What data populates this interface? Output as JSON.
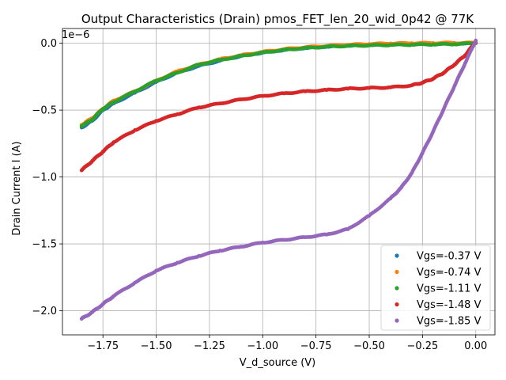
{
  "chart_data": {
    "type": "scatter",
    "title": "Output Characteristics (Drain) pmos_FET_len_20_wid_0p42 @ 77K",
    "xlabel": "V_d_source (V)",
    "ylabel": "Drain Current I (A)",
    "y_offset_label": "1e−6",
    "xlim": [
      -1.94,
      0.09
    ],
    "ylim": [
      -2.18e-06,
      1.1e-07
    ],
    "grid": true,
    "legend_position": "lower-right",
    "x_ticks": [
      -1.75,
      -1.5,
      -1.25,
      -1.0,
      -0.75,
      -0.5,
      -0.25,
      0.0
    ],
    "x_tick_labels": [
      "−1.75",
      "−1.50",
      "−1.25",
      "−1.00",
      "−0.75",
      "−0.50",
      "−0.25",
      "0.00"
    ],
    "y_ticks": [
      0,
      -5e-07,
      -1e-06,
      -1.5e-06,
      -2e-06
    ],
    "y_tick_labels": [
      "0.0",
      "−0.5",
      "−1.0",
      "−1.5",
      "−2.0"
    ],
    "series": [
      {
        "name": "Vgs=-0.37 V",
        "color": "#1f77b4",
        "x": [
          -1.85,
          -1.8,
          -1.75,
          -1.7,
          -1.6,
          -1.5,
          -1.4,
          -1.3,
          -1.2,
          -1.1,
          -1.0,
          -0.9,
          -0.8,
          -0.7,
          -0.6,
          -0.5,
          -0.4,
          -0.3,
          -0.2,
          -0.1,
          0.0
        ],
        "y": [
          -6.3e-07,
          -5.8e-07,
          -5e-07,
          -4.5e-07,
          -3.7e-07,
          -2.9e-07,
          -2.2e-07,
          -1.7e-07,
          -1.3e-07,
          -9.5e-08,
          -7e-08,
          -5e-08,
          -3.5e-08,
          -2.5e-08,
          -1.7e-08,
          -1.2e-08,
          -8e-09,
          -5e-09,
          -3e-09,
          -1e-09,
          0.0
        ]
      },
      {
        "name": "Vgs=-0.74 V",
        "color": "#ff7f0e",
        "x": [
          -1.85,
          -1.8,
          -1.75,
          -1.7,
          -1.6,
          -1.5,
          -1.4,
          -1.3,
          -1.2,
          -1.1,
          -1.0,
          -0.9,
          -0.8,
          -0.7,
          -0.6,
          -0.5,
          -0.4,
          -0.3,
          -0.2,
          -0.1,
          0.0
        ],
        "y": [
          -6.1e-07,
          -5.6e-07,
          -4.9e-07,
          -4.3e-07,
          -3.6e-07,
          -2.8e-07,
          -2.1e-07,
          -1.6e-07,
          -1.2e-07,
          -9e-08,
          -6.5e-08,
          -4.5e-08,
          -3e-08,
          -2e-08,
          -1.2e-08,
          -6e-09,
          -2e-09,
          0.0,
          1e-09,
          2e-09,
          2e-09
        ]
      },
      {
        "name": "Vgs=-1.11 V",
        "color": "#2ca02c",
        "x": [
          -1.85,
          -1.8,
          -1.75,
          -1.7,
          -1.6,
          -1.5,
          -1.4,
          -1.3,
          -1.2,
          -1.1,
          -1.0,
          -0.9,
          -0.8,
          -0.7,
          -0.6,
          -0.5,
          -0.4,
          -0.3,
          -0.2,
          -0.1,
          0.0
        ],
        "y": [
          -6.2e-07,
          -5.7e-07,
          -4.9e-07,
          -4.4e-07,
          -3.6e-07,
          -2.8e-07,
          -2.2e-07,
          -1.6e-07,
          -1.25e-07,
          -9.5e-08,
          -7e-08,
          -5e-08,
          -3.6e-08,
          -2.6e-08,
          -2e-08,
          -1.6e-08,
          -1.3e-08,
          -1.1e-08,
          -9e-09,
          -7e-09,
          0.0
        ]
      },
      {
        "name": "Vgs=-1.48 V",
        "color": "#d62728",
        "x": [
          -1.85,
          -1.8,
          -1.75,
          -1.7,
          -1.6,
          -1.5,
          -1.4,
          -1.3,
          -1.2,
          -1.1,
          -1.0,
          -0.9,
          -0.8,
          -0.7,
          -0.6,
          -0.5,
          -0.4,
          -0.3,
          -0.25,
          -0.2,
          -0.15,
          -0.1,
          -0.05,
          0.0
        ],
        "y": [
          -9.5e-07,
          -8.8e-07,
          -8.1e-07,
          -7.4e-07,
          -6.5e-07,
          -5.8e-07,
          -5.3e-07,
          -4.8e-07,
          -4.5e-07,
          -4.2e-07,
          -3.95e-07,
          -3.75e-07,
          -3.6e-07,
          -3.5e-07,
          -3.4e-07,
          -3.35e-07,
          -3.3e-07,
          -3.15e-07,
          -2.95e-07,
          -2.65e-07,
          -2.2e-07,
          -1.6e-07,
          -9e-08,
          1e-08
        ]
      },
      {
        "name": "Vgs=-1.85 V",
        "color": "#9467bd",
        "x": [
          -1.85,
          -1.8,
          -1.75,
          -1.7,
          -1.6,
          -1.5,
          -1.4,
          -1.3,
          -1.2,
          -1.1,
          -1.0,
          -0.9,
          -0.8,
          -0.7,
          -0.6,
          -0.5,
          -0.4,
          -0.35,
          -0.3,
          -0.25,
          -0.2,
          -0.15,
          -0.1,
          -0.05,
          0.0
        ],
        "y": [
          -2.06e-06,
          -2.01e-06,
          -1.95e-06,
          -1.89e-06,
          -1.79e-06,
          -1.7e-06,
          -1.64e-06,
          -1.59e-06,
          -1.55e-06,
          -1.52e-06,
          -1.49e-06,
          -1.47e-06,
          -1.45e-06,
          -1.43e-06,
          -1.39e-06,
          -1.29e-06,
          -1.16e-06,
          -1.08e-06,
          -9.7e-07,
          -8.2e-07,
          -6.6e-07,
          -4.9e-07,
          -3.2e-07,
          -1.5e-07,
          2e-08
        ]
      }
    ]
  }
}
